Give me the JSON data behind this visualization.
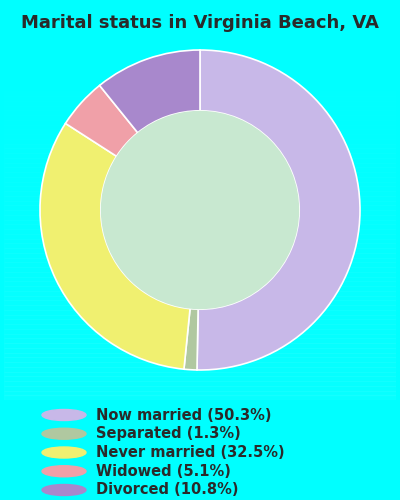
{
  "title": "Marital status in Virginia Beach, VA",
  "slices": [
    {
      "label": "Now married (50.3%)",
      "value": 50.3,
      "color": "#c8b8e8"
    },
    {
      "label": "Separated (1.3%)",
      "value": 1.3,
      "color": "#b0c8a0"
    },
    {
      "label": "Never married (32.5%)",
      "value": 32.5,
      "color": "#f0f070"
    },
    {
      "label": "Widowed (5.1%)",
      "value": 5.1,
      "color": "#f0a0a8"
    },
    {
      "label": "Divorced (10.8%)",
      "value": 10.8,
      "color": "#a888cc"
    }
  ],
  "bg_color": "#c8e8d0",
  "outer_bg": "#00ffff",
  "title_color": "#2a2a2a",
  "title_fontsize": 13,
  "legend_fontsize": 10.5,
  "legend_text_color": "#2a2a2a"
}
